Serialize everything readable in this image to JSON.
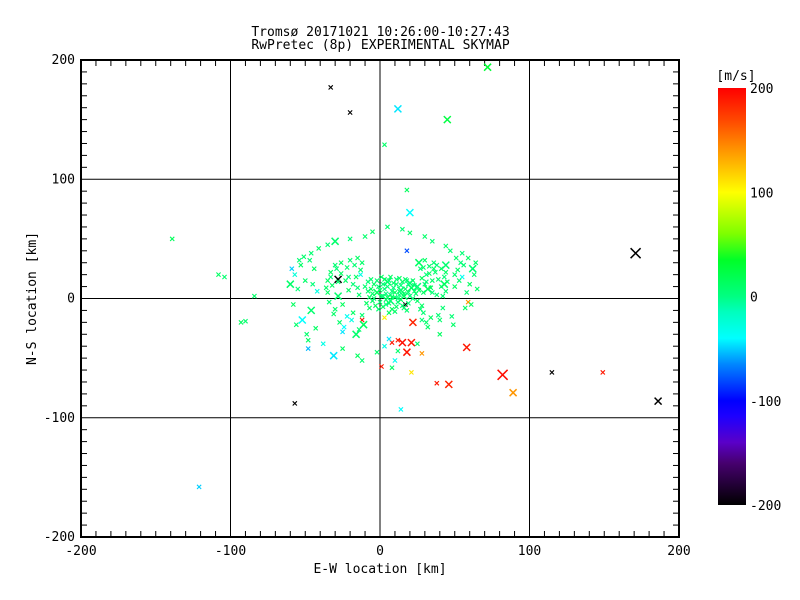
{
  "title": {
    "line1": "Tromsø 20171021 10:26:00-10:27:43",
    "line2": "RwPretec (8p) EXPERIMENTAL SKYMAP"
  },
  "axes": {
    "x": {
      "label": "E-W location [km]",
      "min": -200,
      "max": 200,
      "major_ticks": [
        -200,
        -100,
        0,
        100,
        200
      ],
      "minor_step": 10,
      "grid": [
        -100,
        0,
        100
      ]
    },
    "y": {
      "label": "N-S location [km]",
      "min": -200,
      "max": 200,
      "major_ticks": [
        -200,
        -100,
        0,
        100,
        200
      ],
      "minor_step": 10,
      "grid": [
        -100,
        0,
        100
      ]
    }
  },
  "colorbar": {
    "title": "[m/s]",
    "min": -200,
    "max": 200,
    "ticks": [
      200,
      100,
      0,
      -100,
      -200
    ]
  },
  "colormap": [
    [
      -200,
      "#000000"
    ],
    [
      -160,
      "#46006e"
    ],
    [
      -140,
      "#5a00c8"
    ],
    [
      -115,
      "#1e00ff"
    ],
    [
      -100,
      "#0000ff"
    ],
    [
      -65,
      "#0087ff"
    ],
    [
      -40,
      "#00ffff"
    ],
    [
      -15,
      "#00ffbe"
    ],
    [
      0,
      "#00ff82"
    ],
    [
      35,
      "#00ff28"
    ],
    [
      60,
      "#7dff00"
    ],
    [
      100,
      "#ffff00"
    ],
    [
      140,
      "#ff9600"
    ],
    [
      170,
      "#ff4600"
    ],
    [
      200,
      "#ff0000"
    ]
  ],
  "chart_data": {
    "type": "scatter",
    "title": "Tromsø 20171021 10:26:00-10:27:43 / RwPretec (8p) EXPERIMENTAL SKYMAP",
    "xlabel": "E-W location [km]",
    "ylabel": "N-S location [km]",
    "xlim": [
      -200,
      200
    ],
    "ylim": [
      -200,
      200
    ],
    "grid": true,
    "colorbar_label": "[m/s]",
    "color_range": [
      -200,
      200
    ],
    "marker": "x",
    "points_format": "[x_km, y_km, velocity_mps, size_class]",
    "points": [
      [
        72,
        194,
        30,
        2
      ],
      [
        -33,
        177,
        -200,
        1
      ],
      [
        -20,
        156,
        -200,
        1
      ],
      [
        12,
        159,
        -45,
        2
      ],
      [
        45,
        150,
        25,
        2
      ],
      [
        3,
        129,
        10,
        1
      ],
      [
        20,
        72,
        -40,
        2
      ],
      [
        18,
        91,
        15,
        1
      ],
      [
        -139,
        50,
        15,
        1
      ],
      [
        171,
        38,
        -200,
        3
      ],
      [
        186,
        -86,
        -200,
        2
      ],
      [
        149,
        -62,
        190,
        1
      ],
      [
        115,
        -62,
        -200,
        1
      ],
      [
        82,
        -64,
        195,
        3
      ],
      [
        89,
        -79,
        140,
        2
      ],
      [
        58,
        -41,
        190,
        2
      ],
      [
        46,
        -72,
        185,
        2
      ],
      [
        38,
        -71,
        190,
        1
      ],
      [
        15,
        -37,
        195,
        2
      ],
      [
        21,
        -37,
        190,
        2
      ],
      [
        22,
        -20,
        185,
        2
      ],
      [
        18,
        -45,
        192,
        2
      ],
      [
        12,
        -35,
        188,
        1
      ],
      [
        1,
        -57,
        190,
        1
      ],
      [
        8,
        -37,
        190,
        1
      ],
      [
        21,
        -62,
        110,
        1
      ],
      [
        28,
        -46,
        140,
        1
      ],
      [
        59,
        -3,
        140,
        1
      ],
      [
        3,
        -16,
        105,
        1
      ],
      [
        -121,
        -158,
        -50,
        1
      ],
      [
        -57,
        -88,
        -200,
        1
      ],
      [
        -31,
        -48,
        -45,
        2
      ],
      [
        14,
        -93,
        -40,
        1
      ],
      [
        18,
        40,
        -80,
        1
      ],
      [
        -28,
        16,
        -200,
        2
      ],
      [
        17,
        -5,
        -200,
        1
      ],
      [
        -12,
        -18,
        195,
        1
      ],
      [
        6,
        -34,
        -45,
        1
      ],
      [
        -108,
        20,
        12,
        1
      ],
      [
        -104,
        18,
        8,
        1
      ],
      [
        -84,
        2,
        10,
        1
      ],
      [
        -93,
        -20,
        14,
        1
      ],
      [
        -90,
        -19,
        8,
        1
      ],
      [
        -2,
        -45,
        10,
        1
      ],
      [
        8,
        -58,
        12,
        1
      ],
      [
        -12,
        -52,
        8,
        1
      ],
      [
        3,
        -40,
        -30,
        1
      ],
      [
        12,
        -44,
        9,
        1
      ],
      [
        1,
        2,
        8,
        1
      ],
      [
        4,
        -1,
        12,
        1
      ],
      [
        7,
        3,
        6,
        1
      ],
      [
        -2,
        5,
        15,
        2
      ],
      [
        10,
        1,
        9,
        1
      ],
      [
        3,
        8,
        4,
        1
      ],
      [
        -5,
        -2,
        11,
        1
      ],
      [
        13,
        6,
        7,
        1
      ],
      [
        6,
        -4,
        14,
        1
      ],
      [
        -1,
        10,
        5,
        1
      ],
      [
        16,
        2,
        10,
        2
      ],
      [
        9,
        9,
        3,
        1
      ],
      [
        2,
        -7,
        16,
        1
      ],
      [
        12,
        -3,
        8,
        1
      ],
      [
        -4,
        12,
        12,
        1
      ],
      [
        19,
        5,
        6,
        1
      ],
      [
        5,
        14,
        9,
        2
      ],
      [
        -7,
        1,
        13,
        1
      ],
      [
        14,
        11,
        4,
        1
      ],
      [
        8,
        -9,
        17,
        1
      ],
      [
        22,
        0,
        7,
        1
      ],
      [
        0,
        -3,
        10,
        1
      ],
      [
        11,
        16,
        5,
        1
      ],
      [
        -3,
        -6,
        14,
        1
      ],
      [
        17,
        8,
        11,
        1
      ],
      [
        4,
        4,
        2,
        1
      ],
      [
        20,
        13,
        8,
        2
      ],
      [
        -6,
        8,
        15,
        1
      ],
      [
        15,
        -6,
        6,
        1
      ],
      [
        7,
        18,
        12,
        1
      ],
      [
        24,
        4,
        9,
        1
      ],
      [
        2,
        12,
        4,
        1
      ],
      [
        -9,
        -4,
        13,
        1
      ],
      [
        18,
        15,
        7,
        1
      ],
      [
        10,
        -11,
        10,
        1
      ],
      [
        5,
        1,
        16,
        1
      ],
      [
        13,
        3,
        3,
        1
      ],
      [
        -2,
        15,
        8,
        1
      ],
      [
        21,
        9,
        14,
        2
      ],
      [
        8,
        6,
        5,
        1
      ],
      [
        25,
        -2,
        11,
        1
      ],
      [
        -8,
        14,
        6,
        1
      ],
      [
        16,
        -8,
        9,
        1
      ],
      [
        3,
        16,
        13,
        1
      ],
      [
        11,
        12,
        7,
        1
      ],
      [
        -5,
        4,
        10,
        1
      ],
      [
        23,
        11,
        4,
        1
      ],
      [
        6,
        -12,
        15,
        1
      ],
      [
        14,
        7,
        8,
        2
      ],
      [
        0,
        7,
        12,
        1
      ],
      [
        19,
        -4,
        5,
        1
      ],
      [
        9,
        13,
        9,
        1
      ],
      [
        -7,
        -8,
        14,
        1
      ],
      [
        12,
        0,
        6,
        1
      ],
      [
        17,
        16,
        10,
        1
      ],
      [
        4,
        -5,
        3,
        1
      ],
      [
        26,
        7,
        13,
        1
      ],
      [
        -10,
        10,
        7,
        1
      ],
      [
        15,
        14,
        11,
        1
      ],
      [
        7,
        -2,
        8,
        2
      ],
      [
        20,
        2,
        4,
        1
      ],
      [
        1,
        18,
        12,
        1
      ],
      [
        10,
        5,
        15,
        1
      ],
      [
        -4,
        0,
        6,
        1
      ],
      [
        18,
        -10,
        9,
        1
      ],
      [
        5,
        10,
        5,
        1
      ],
      [
        13,
        17,
        13,
        1
      ],
      [
        -1,
        -9,
        7,
        1
      ],
      [
        22,
        15,
        10,
        1
      ],
      [
        8,
        1,
        14,
        1
      ],
      [
        25,
        10,
        6,
        2
      ],
      [
        -6,
        16,
        8,
        1
      ],
      [
        16,
        4,
        11,
        1
      ],
      [
        2,
        2,
        5,
        1
      ],
      [
        11,
        -7,
        12,
        1
      ],
      [
        19,
        12,
        3,
        1
      ],
      [
        -8,
        6,
        9,
        1
      ],
      [
        14,
        -1,
        16,
        1
      ],
      [
        6,
        15,
        7,
        1
      ],
      [
        23,
        6,
        10,
        1
      ],
      [
        -14,
        3,
        9,
        1
      ],
      [
        28,
        -6,
        12,
        1
      ],
      [
        -18,
        12,
        5,
        1
      ],
      [
        32,
        8,
        14,
        2
      ],
      [
        -12,
        -14,
        7,
        1
      ],
      [
        35,
        15,
        10,
        1
      ],
      [
        -21,
        7,
        13,
        1
      ],
      [
        29,
        -12,
        6,
        1
      ],
      [
        -16,
        18,
        11,
        1
      ],
      [
        38,
        3,
        8,
        1
      ],
      [
        -25,
        -5,
        15,
        1
      ],
      [
        31,
        20,
        4,
        1
      ],
      [
        -13,
        24,
        9,
        1
      ],
      [
        41,
        10,
        12,
        1
      ],
      [
        -19,
        -18,
        -30,
        1
      ],
      [
        27,
        25,
        7,
        1
      ],
      [
        -28,
        2,
        10,
        2
      ],
      [
        34,
        -16,
        13,
        1
      ],
      [
        -15,
        9,
        6,
        1
      ],
      [
        44,
        6,
        9,
        1
      ],
      [
        -23,
        15,
        11,
        1
      ],
      [
        30,
        12,
        5,
        1
      ],
      [
        -11,
        -22,
        14,
        2
      ],
      [
        37,
        22,
        8,
        1
      ],
      [
        -26,
        21,
        12,
        1
      ],
      [
        42,
        -8,
        7,
        1
      ],
      [
        -30,
        -9,
        10,
        1
      ],
      [
        28,
        17,
        15,
        1
      ],
      [
        -17,
        28,
        6,
        1
      ],
      [
        45,
        14,
        11,
        1
      ],
      [
        -22,
        -15,
        -35,
        1
      ],
      [
        33,
        27,
        9,
        1
      ],
      [
        -32,
        11,
        13,
        1
      ],
      [
        39,
        -14,
        5,
        1
      ],
      [
        -14,
        -26,
        8,
        1
      ],
      [
        26,
        30,
        12,
        2
      ],
      [
        -27,
        -20,
        10,
        1
      ],
      [
        43,
        18,
        6,
        1
      ],
      [
        -35,
        5,
        14,
        1
      ],
      [
        31,
        -20,
        9,
        1
      ],
      [
        -20,
        32,
        7,
        1
      ],
      [
        36,
        25,
        11,
        1
      ],
      [
        -24,
        -24,
        -40,
        1
      ],
      [
        29,
        5,
        13,
        1
      ],
      [
        -33,
        18,
        5,
        1
      ],
      [
        40,
        -18,
        8,
        1
      ],
      [
        -12,
        30,
        10,
        1
      ],
      [
        34,
        9,
        15,
        1
      ],
      [
        -29,
        25,
        6,
        1
      ],
      [
        44,
        22,
        12,
        1
      ],
      [
        -16,
        -30,
        9,
        2
      ],
      [
        27,
        -9,
        7,
        1
      ],
      [
        -31,
        -13,
        11,
        1
      ],
      [
        38,
        28,
        4,
        1
      ],
      [
        -26,
        30,
        13,
        1
      ],
      [
        32,
        -24,
        10,
        1
      ],
      [
        -34,
        -3,
        8,
        1
      ],
      [
        41,
        25,
        14,
        1
      ],
      [
        -13,
        20,
        -30,
        1
      ],
      [
        35,
        5,
        6,
        1
      ],
      [
        -28,
        14,
        9,
        1
      ],
      [
        30,
        32,
        11,
        1
      ],
      [
        -22,
        26,
        7,
        1
      ],
      [
        43,
        12,
        13,
        2
      ],
      [
        -36,
        9,
        10,
        1
      ],
      [
        28,
        -18,
        5,
        1
      ],
      [
        -15,
        34,
        12,
        1
      ],
      [
        39,
        16,
        8,
        1
      ],
      [
        -25,
        -28,
        -45,
        1
      ],
      [
        33,
        21,
        14,
        1
      ],
      [
        -30,
        28,
        6,
        1
      ],
      [
        42,
        2,
        9,
        1
      ],
      [
        -18,
        -12,
        11,
        1
      ],
      [
        36,
        30,
        7,
        1
      ],
      [
        -33,
        22,
        13,
        1
      ],
      [
        29,
        26,
        10,
        1
      ],
      [
        -21,
        18,
        4,
        1
      ],
      [
        44,
        28,
        8,
        2
      ],
      [
        -35,
        15,
        12,
        1
      ],
      [
        31,
        14,
        5,
        1
      ],
      [
        -42,
        6,
        -30,
        1
      ],
      [
        50,
        10,
        12,
        1
      ],
      [
        -46,
        -10,
        8,
        2
      ],
      [
        55,
        18,
        -35,
        1
      ],
      [
        -50,
        15,
        10,
        1
      ],
      [
        48,
        -15,
        6,
        1
      ],
      [
        -44,
        25,
        13,
        1
      ],
      [
        58,
        5,
        9,
        1
      ],
      [
        -52,
        -18,
        -40,
        2
      ],
      [
        52,
        24,
        11,
        1
      ],
      [
        -47,
        32,
        7,
        1
      ],
      [
        60,
        12,
        14,
        1
      ],
      [
        -55,
        8,
        5,
        1
      ],
      [
        49,
        -22,
        10,
        1
      ],
      [
        -43,
        -25,
        12,
        1
      ],
      [
        63,
        20,
        8,
        1
      ],
      [
        -57,
        20,
        -25,
        1
      ],
      [
        54,
        30,
        6,
        1
      ],
      [
        -49,
        -30,
        9,
        1
      ],
      [
        57,
        -8,
        13,
        1
      ],
      [
        -53,
        28,
        11,
        1
      ],
      [
        62,
        25,
        7,
        2
      ],
      [
        -45,
        12,
        4,
        1
      ],
      [
        51,
        34,
        10,
        1
      ],
      [
        -58,
        -5,
        14,
        1
      ],
      [
        65,
        8,
        12,
        1
      ],
      [
        -51,
        35,
        8,
        1
      ],
      [
        56,
        28,
        5,
        1
      ],
      [
        -59,
        25,
        -50,
        1
      ],
      [
        53,
        15,
        9,
        1
      ],
      [
        -48,
        -35,
        13,
        1
      ],
      [
        64,
        30,
        11,
        1
      ],
      [
        -54,
        32,
        6,
        1
      ],
      [
        50,
        20,
        8,
        1
      ],
      [
        -60,
        12,
        10,
        2
      ],
      [
        59,
        34,
        12,
        1
      ],
      [
        -46,
        38,
        7,
        1
      ],
      [
        61,
        -5,
        14,
        1
      ],
      [
        -56,
        -22,
        9,
        1
      ],
      [
        55,
        38,
        5,
        1
      ],
      [
        -41,
        42,
        11,
        1
      ],
      [
        47,
        40,
        8,
        1
      ],
      [
        -38,
        -38,
        -30,
        1
      ],
      [
        44,
        44,
        10,
        1
      ],
      [
        -35,
        45,
        6,
        1
      ],
      [
        40,
        -30,
        13,
        1
      ],
      [
        -30,
        48,
        9,
        2
      ],
      [
        35,
        48,
        7,
        1
      ],
      [
        -25,
        -42,
        12,
        1
      ],
      [
        30,
        52,
        10,
        1
      ],
      [
        -20,
        50,
        5,
        1
      ],
      [
        25,
        -38,
        8,
        1
      ],
      [
        -48,
        -42,
        -55,
        1
      ],
      [
        20,
        55,
        11,
        1
      ],
      [
        -15,
        -48,
        14,
        1
      ],
      [
        15,
        58,
        6,
        1
      ],
      [
        -10,
        52,
        9,
        1
      ],
      [
        10,
        -52,
        -35,
        1
      ],
      [
        -5,
        56,
        12,
        1
      ],
      [
        5,
        60,
        7,
        1
      ]
    ]
  }
}
